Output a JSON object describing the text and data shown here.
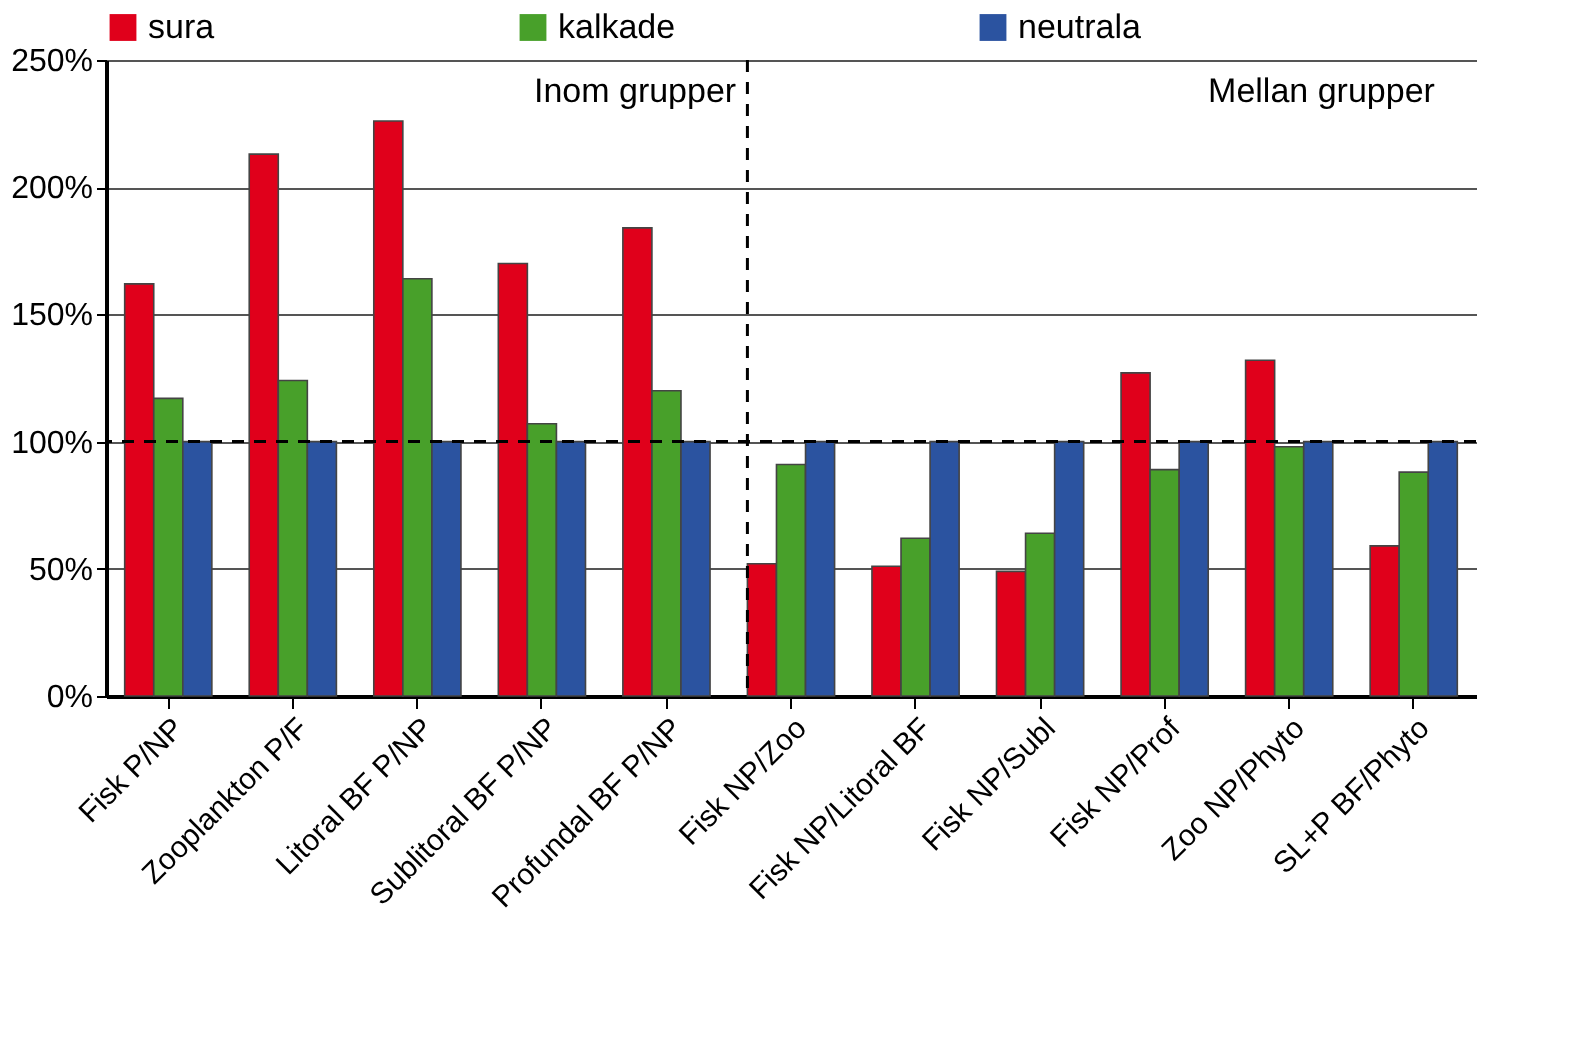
{
  "chart_data": {
    "type": "bar",
    "categories": [
      "Fisk P/NP",
      "Zooplankton P/F",
      "Litoral BF P/NP",
      "Sublitoral BF P/NP",
      "Profundal BF P/NP",
      "Fisk NP/Zoo",
      "Fisk NP/Litoral BF",
      "Fisk NP/Subl",
      "Fisk NP/Prof",
      "Zoo NP/Phyto",
      "SL+P BF/Phyto"
    ],
    "series": [
      {
        "name": "sura",
        "color": "#e0001b",
        "values": [
          162,
          213,
          226,
          170,
          184,
          52,
          51,
          49,
          127,
          132,
          59
        ]
      },
      {
        "name": "kalkade",
        "color": "#48a02a",
        "values": [
          117,
          124,
          164,
          107,
          120,
          91,
          62,
          64,
          89,
          98,
          88
        ]
      },
      {
        "name": "neutrala",
        "color": "#2b53a0",
        "values": [
          100,
          100,
          100,
          100,
          100,
          100,
          100,
          100,
          100,
          100,
          100
        ]
      }
    ],
    "ylim": [
      0,
      250
    ],
    "yticks": [
      {
        "value": 0,
        "label": "0%"
      },
      {
        "value": 50,
        "label": "50%"
      },
      {
        "value": 100,
        "label": "100%"
      },
      {
        "value": 150,
        "label": "150%"
      },
      {
        "value": 200,
        "label": "200%"
      },
      {
        "value": 250,
        "label": "250%"
      }
    ],
    "ref_lines": [
      {
        "axis": "y",
        "value": 100,
        "line_style": "dashed",
        "color": "#000000"
      },
      {
        "axis": "x",
        "value": "Fisk NP/Zoo",
        "line_style": "dashed",
        "color": "#000000"
      }
    ],
    "annotations": [
      "Inom grupper",
      "Mellan grupper"
    ],
    "grid": "y",
    "legend": "top"
  }
}
